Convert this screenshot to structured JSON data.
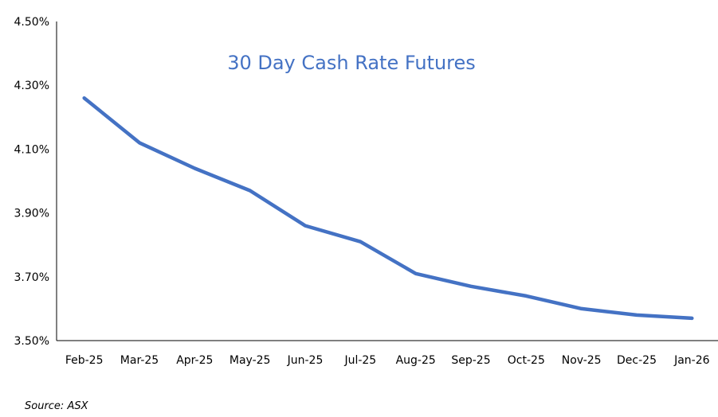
{
  "chart_data": {
    "type": "line",
    "title": "30 Day Cash Rate Futures",
    "xlabel": "",
    "ylabel": "",
    "categories": [
      "Feb-25",
      "Mar-25",
      "Apr-25",
      "May-25",
      "Jun-25",
      "Jul-25",
      "Aug-25",
      "Sep-25",
      "Oct-25",
      "Nov-25",
      "Dec-25",
      "Jan-26"
    ],
    "series": [
      {
        "color": "#4472C4",
        "values": [
          4.26,
          4.12,
          4.04,
          3.97,
          3.86,
          3.81,
          3.71,
          3.67,
          3.64,
          3.6,
          3.58,
          3.57
        ]
      }
    ],
    "ylim": [
      3.5,
      4.5
    ],
    "yticks": [
      "3.50%",
      "3.70%",
      "3.90%",
      "4.10%",
      "4.30%",
      "4.50%"
    ],
    "grid": false,
    "legend": "none"
  },
  "source_note": "Source: ASX",
  "colors": {
    "title": "#4472C4",
    "axis": "#000000"
  }
}
